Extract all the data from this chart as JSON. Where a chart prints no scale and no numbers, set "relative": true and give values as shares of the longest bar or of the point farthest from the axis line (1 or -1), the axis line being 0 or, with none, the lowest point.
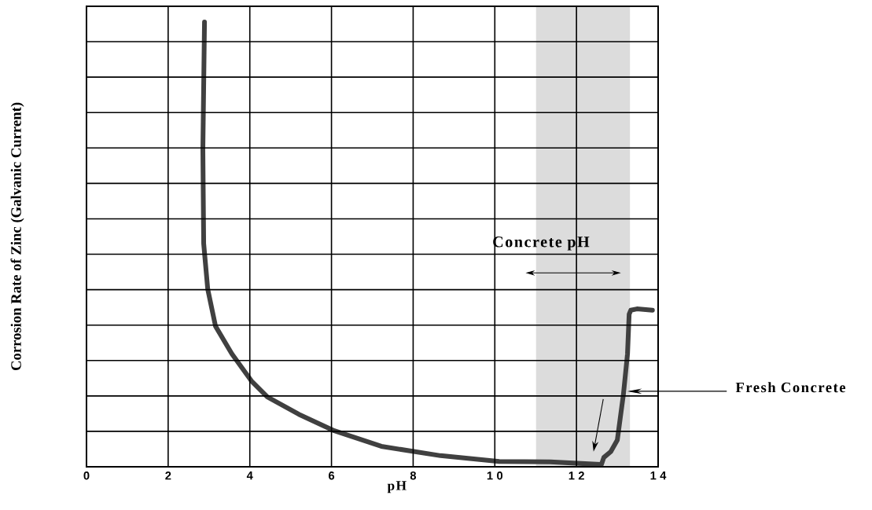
{
  "chart_data": {
    "type": "line",
    "relative": true,
    "xlabel": "pH",
    "ylabel": "Corrosion Rate  of Zinc (Galvanic Current)",
    "xlim": [
      0,
      14
    ],
    "xticks": [
      0,
      2,
      4,
      6,
      8,
      10,
      12,
      14
    ],
    "grid": true,
    "series": [
      {
        "color": "#404040",
        "x": [
          2.89,
          2.85,
          2.87,
          2.97,
          3.16,
          3.56,
          4.04,
          4.43,
          5.2,
          6.07,
          7.22,
          8.67,
          10.11,
          11.36,
          12.61,
          12.67,
          12.84,
          13.0,
          13.15,
          13.25,
          13.29,
          13.33,
          13.48,
          13.86
        ],
        "values": [
          1.0,
          0.714,
          0.502,
          0.399,
          0.316,
          0.254,
          0.193,
          0.157,
          0.118,
          0.081,
          0.046,
          0.025,
          0.012,
          0.011,
          0.005,
          0.021,
          0.034,
          0.06,
          0.163,
          0.254,
          0.343,
          0.352,
          0.355,
          0.352
        ]
      }
    ],
    "bands": [
      {
        "axis": "x",
        "from": 11.01,
        "to": 13.31,
        "label": "Concrete pH",
        "color": "#dcdcdc"
      }
    ],
    "annotations": [
      "Fresh Concrete"
    ]
  }
}
